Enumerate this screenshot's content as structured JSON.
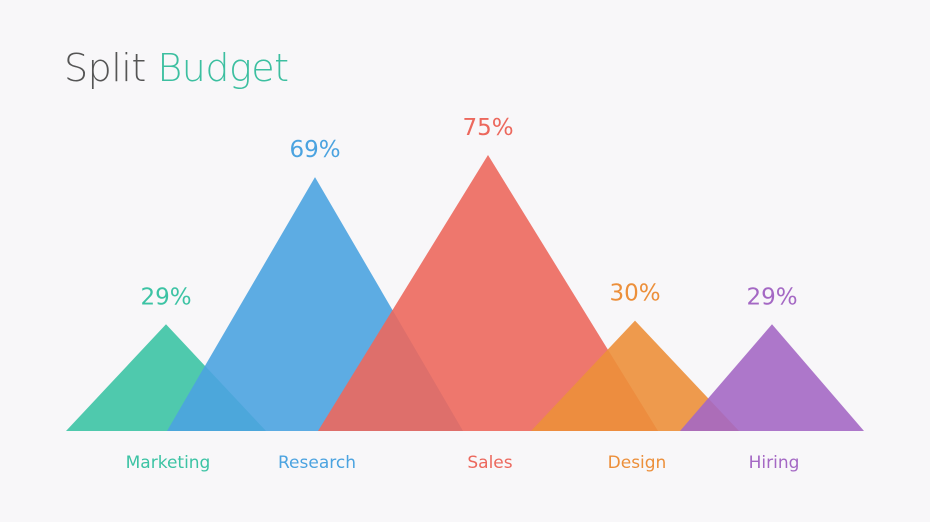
{
  "page": {
    "title_part1": "Split",
    "title_part2": "Budget"
  },
  "colors": {
    "title_part1": "#555555",
    "title_part2": "#3cbfa0",
    "background": "#f8f7f9"
  },
  "chart_data": {
    "type": "area",
    "subtype": "overlapping-triangles",
    "title": "Split Budget",
    "categories": [
      "Marketing",
      "Research",
      "Sales",
      "Design",
      "Hiring"
    ],
    "values": [
      29,
      69,
      75,
      30,
      29
    ],
    "value_labels": [
      "29%",
      "69%",
      "75%",
      "30%",
      "29%"
    ],
    "colors": [
      "#3cc3a4",
      "#4ba3e0",
      "#ec685d",
      "#ec8f3a",
      "#a468c4"
    ],
    "opacity": 0.9,
    "grid": false,
    "legend": "none"
  }
}
